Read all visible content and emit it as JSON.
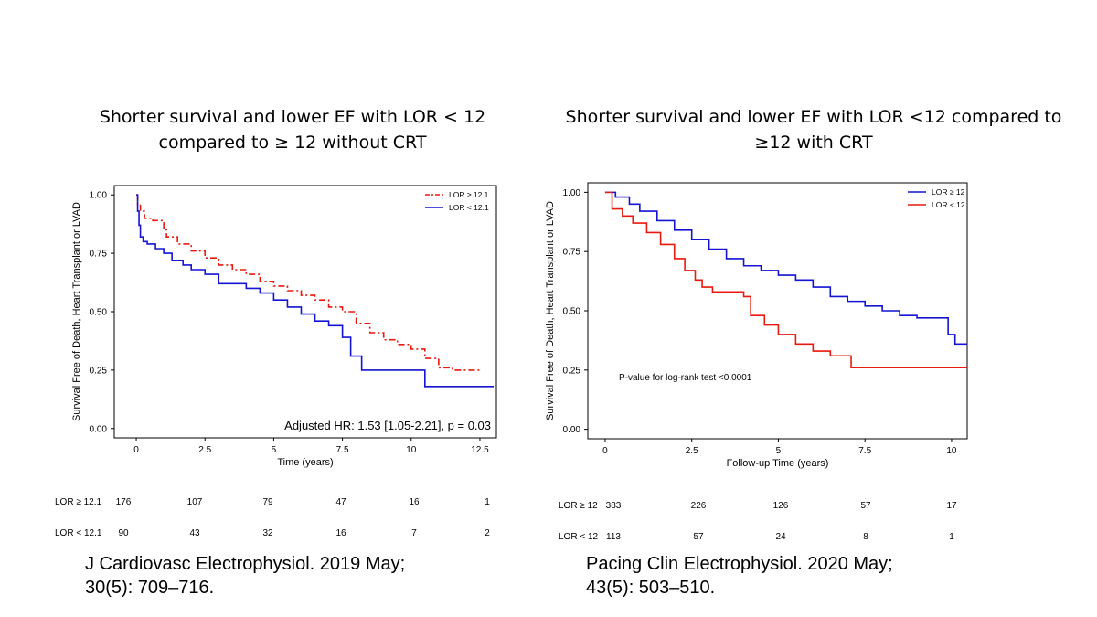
{
  "panels": {
    "left": {
      "title": "Shorter survival and lower EF with LOR < 12 compared to ≥ 12 without CRT",
      "citation_line1": "J Cardiovasc Electrophysiol. 2019 May;",
      "citation_line2": "30(5): 709–716."
    },
    "right": {
      "title": "Shorter survival and lower EF with LOR <12 compared to ≥12 with CRT",
      "citation_line1": "Pacing Clin Electrophysiol. 2020 May;",
      "citation_line2": "43(5): 503–510."
    }
  },
  "chart_data": [
    {
      "type": "line",
      "step": true,
      "xlabel": "Time (years)",
      "ylabel": "Survival Free of Death, Heart Transplant or LVAD",
      "xlim": [
        -0.8,
        13.1
      ],
      "ylim": [
        -0.04,
        1.04
      ],
      "xticks": [
        0,
        2.5,
        5,
        7.5,
        10,
        12.5
      ],
      "xtick_labels": [
        "0",
        "2.5",
        "5",
        "7.5",
        "10",
        "12.5"
      ],
      "yticks": [
        0,
        0.25,
        0.5,
        0.75,
        1
      ],
      "ytick_labels": [
        "0.00",
        "0.25",
        "0.50",
        "0.75",
        "1.00"
      ],
      "legend_position": "top-right",
      "annotation": "Adjusted HR: 1.53 [1.05-2.21], p = 0.03",
      "series": [
        {
          "name": "LOR ≥ 12.1",
          "color": "#e8190f",
          "dash": "dashdot",
          "x": [
            0,
            0.05,
            0.15,
            0.3,
            0.6,
            1.0,
            1.1,
            1.5,
            2.0,
            2.5,
            3.0,
            3.5,
            4.0,
            4.5,
            5.0,
            5.5,
            6.0,
            6.5,
            7.0,
            7.5,
            8.0,
            8.5,
            9.0,
            9.5,
            10.0,
            10.5,
            11.0,
            11.5,
            12.0,
            12.5
          ],
          "y": [
            1.0,
            0.96,
            0.93,
            0.9,
            0.89,
            0.85,
            0.82,
            0.79,
            0.76,
            0.73,
            0.7,
            0.68,
            0.66,
            0.63,
            0.61,
            0.59,
            0.57,
            0.55,
            0.52,
            0.5,
            0.45,
            0.41,
            0.38,
            0.36,
            0.34,
            0.3,
            0.26,
            0.25,
            0.25,
            0.25
          ]
        },
        {
          "name": "LOR < 12.1",
          "color": "#1414d2",
          "dash": "solid",
          "x": [
            0,
            0.05,
            0.1,
            0.15,
            0.25,
            0.4,
            0.7,
            1.0,
            1.3,
            1.7,
            2.0,
            2.5,
            3.0,
            4.0,
            4.5,
            5.0,
            5.5,
            6.0,
            6.5,
            7.0,
            7.5,
            7.8,
            8.2,
            9.0,
            10.0,
            10.5,
            11.0,
            12.0,
            13.0
          ],
          "y": [
            1.0,
            0.93,
            0.87,
            0.82,
            0.8,
            0.79,
            0.77,
            0.75,
            0.72,
            0.7,
            0.68,
            0.66,
            0.62,
            0.6,
            0.58,
            0.55,
            0.52,
            0.49,
            0.46,
            0.44,
            0.39,
            0.31,
            0.25,
            0.25,
            0.25,
            0.18,
            0.18,
            0.18,
            0.18
          ]
        }
      ],
      "risk_table": {
        "times": [
          0,
          2.5,
          5,
          7.5,
          10,
          12.5
        ],
        "rows": [
          {
            "label": "LOR ≥ 12.1",
            "values": [
              "176",
              "107",
              "79",
              "47",
              "16",
              "1"
            ]
          },
          {
            "label": "LOR < 12.1",
            "values": [
              "90",
              "43",
              "32",
              "16",
              "7",
              "2"
            ]
          }
        ]
      }
    },
    {
      "type": "line",
      "step": true,
      "xlabel": "Follow-up Time (years)",
      "ylabel": "Survival Free of Death, Heart Transplant or LVAD",
      "xlim": [
        -0.5,
        10.45
      ],
      "ylim": [
        -0.04,
        1.04
      ],
      "xticks": [
        0,
        2.5,
        5,
        7.5,
        10
      ],
      "xtick_labels": [
        "0",
        "2.5",
        "5",
        "7.5",
        "10"
      ],
      "yticks": [
        0,
        0.25,
        0.5,
        0.75,
        1
      ],
      "ytick_labels": [
        "0.00",
        "0.25",
        "0.50",
        "0.75",
        "1.00"
      ],
      "legend_position": "top-right",
      "annotation": "P-value for log-rank test <0.0001",
      "series": [
        {
          "name": "LOR ≥ 12",
          "color": "#1414d2",
          "dash": "solid",
          "x": [
            0,
            0.3,
            0.7,
            1.0,
            1.5,
            2.0,
            2.5,
            3.0,
            3.5,
            4.0,
            4.5,
            5.0,
            5.5,
            6.0,
            6.5,
            7.0,
            7.5,
            8.0,
            8.5,
            9.0,
            9.5,
            9.9,
            10.1,
            10.45
          ],
          "y": [
            1.0,
            0.98,
            0.95,
            0.92,
            0.88,
            0.84,
            0.8,
            0.76,
            0.72,
            0.69,
            0.67,
            0.65,
            0.63,
            0.6,
            0.56,
            0.54,
            0.52,
            0.5,
            0.48,
            0.47,
            0.47,
            0.4,
            0.36,
            0.36
          ]
        },
        {
          "name": "LOR < 12",
          "color": "#e8190f",
          "dash": "solid",
          "x": [
            0,
            0.2,
            0.5,
            0.8,
            1.2,
            1.6,
            2.0,
            2.3,
            2.6,
            2.8,
            3.1,
            3.5,
            4.0,
            4.2,
            4.6,
            5.0,
            5.5,
            6.0,
            6.5,
            7.0,
            7.1,
            7.5,
            8.0,
            9.0,
            10.0,
            10.45
          ],
          "y": [
            1.0,
            0.93,
            0.9,
            0.87,
            0.83,
            0.78,
            0.72,
            0.67,
            0.63,
            0.6,
            0.58,
            0.58,
            0.56,
            0.48,
            0.44,
            0.4,
            0.36,
            0.33,
            0.31,
            0.31,
            0.26,
            0.26,
            0.26,
            0.26,
            0.26,
            0.26
          ]
        }
      ],
      "risk_table": {
        "times": [
          0,
          2.5,
          5,
          7.5,
          10
        ],
        "rows": [
          {
            "label": "LOR ≥ 12",
            "values": [
              "383",
              "226",
              "126",
              "57",
              "17"
            ]
          },
          {
            "label": "LOR < 12",
            "values": [
              "113",
              "57",
              "24",
              "8",
              "1"
            ]
          }
        ]
      }
    }
  ]
}
